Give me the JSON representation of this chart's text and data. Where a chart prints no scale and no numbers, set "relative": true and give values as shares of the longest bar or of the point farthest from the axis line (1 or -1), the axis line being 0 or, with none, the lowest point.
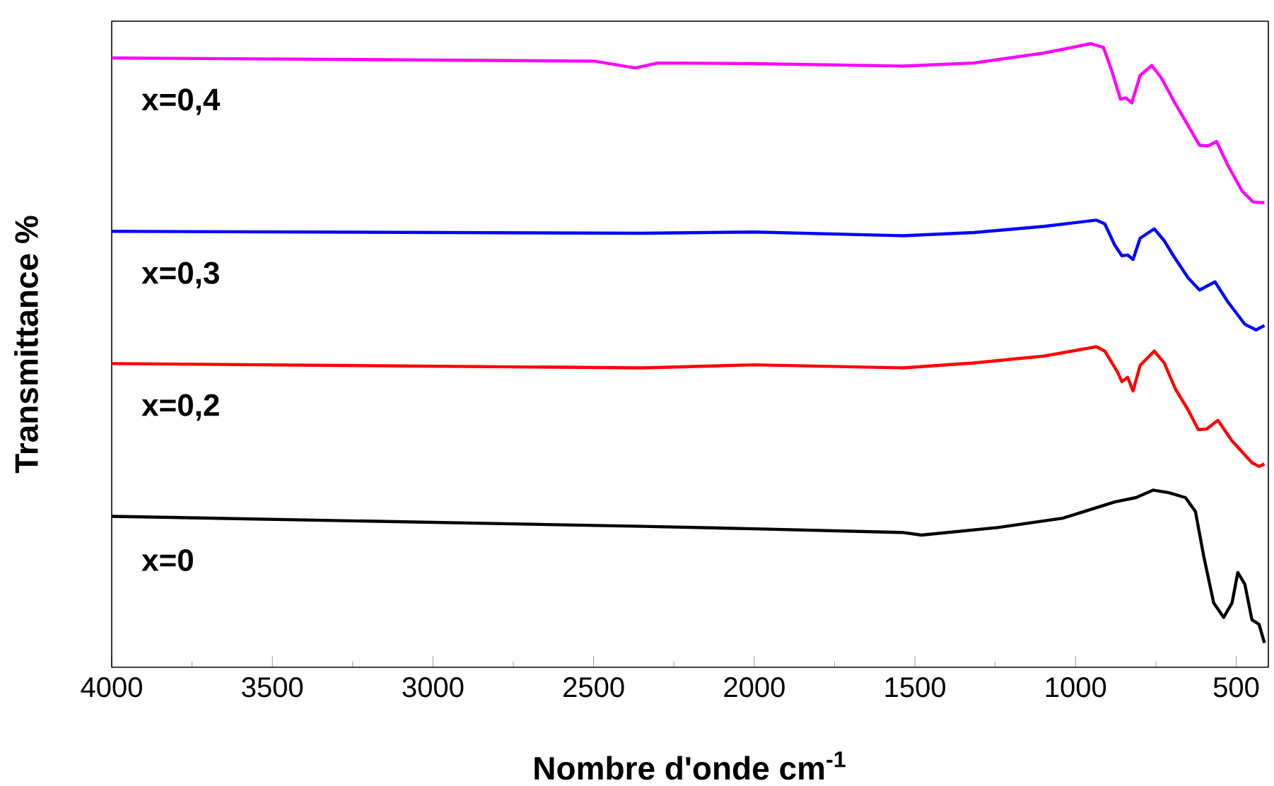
{
  "chart_data": {
    "type": "line",
    "relative": true,
    "xlabel": "Nombre d'onde cm$^{-1}$",
    "ylabel": "Transmittance %",
    "xlim": [
      4000,
      400
    ],
    "xticks": [
      4000,
      3500,
      3000,
      2500,
      2000,
      1500,
      1000,
      500
    ],
    "legend": false,
    "grid": false,
    "marker": "none",
    "line_style": "solid",
    "series": [
      {
        "name": "x=0,4",
        "color": "#ff00ff",
        "x": [
          4000,
          2500,
          2370,
          2300,
          2000,
          1537,
          1317,
          1098,
          952,
          913,
          887,
          860,
          843,
          825,
          799,
          763,
          733,
          693,
          658,
          614,
          588,
          561,
          526,
          482,
          447,
          412
        ],
        "values": [
          0.977,
          0.972,
          0.961,
          0.969,
          0.968,
          0.964,
          0.969,
          0.985,
          1.0,
          0.994,
          0.956,
          0.911,
          0.913,
          0.905,
          0.949,
          0.965,
          0.945,
          0.907,
          0.876,
          0.837,
          0.836,
          0.843,
          0.805,
          0.764,
          0.746,
          0.745
        ]
      },
      {
        "name": "x=0,3",
        "color": "#0000ff",
        "x": [
          4000,
          2350,
          2000,
          1537,
          1317,
          1098,
          935,
          909,
          878,
          856,
          838,
          821,
          799,
          755,
          724,
          693,
          649,
          614,
          566,
          526,
          473,
          438,
          412
        ],
        "values": [
          0.699,
          0.696,
          0.698,
          0.692,
          0.697,
          0.707,
          0.717,
          0.711,
          0.677,
          0.66,
          0.661,
          0.654,
          0.688,
          0.703,
          0.684,
          0.658,
          0.624,
          0.605,
          0.618,
          0.586,
          0.55,
          0.541,
          0.548
        ]
      },
      {
        "name": "x=0,2",
        "color": "#ff0000",
        "x": [
          4000,
          2350,
          2000,
          1537,
          1317,
          1098,
          935,
          909,
          869,
          856,
          838,
          821,
          799,
          755,
          724,
          689,
          649,
          618,
          592,
          557,
          513,
          451,
          429,
          412
        ],
        "values": [
          0.487,
          0.48,
          0.485,
          0.48,
          0.488,
          0.499,
          0.514,
          0.507,
          0.473,
          0.458,
          0.465,
          0.443,
          0.484,
          0.507,
          0.488,
          0.446,
          0.412,
          0.381,
          0.382,
          0.396,
          0.363,
          0.328,
          0.322,
          0.326
        ]
      },
      {
        "name": "x=0",
        "color": "#000000",
        "x": [
          4000,
          2350,
          2000,
          1537,
          1480,
          1243,
          1040,
          878,
          812,
          759,
          711,
          658,
          627,
          601,
          570,
          539,
          513,
          495,
          473,
          451,
          429,
          412
        ],
        "values": [
          0.242,
          0.226,
          0.222,
          0.216,
          0.212,
          0.224,
          0.239,
          0.265,
          0.272,
          0.284,
          0.28,
          0.272,
          0.25,
          0.178,
          0.103,
          0.08,
          0.103,
          0.152,
          0.133,
          0.076,
          0.069,
          0.039
        ]
      }
    ]
  }
}
